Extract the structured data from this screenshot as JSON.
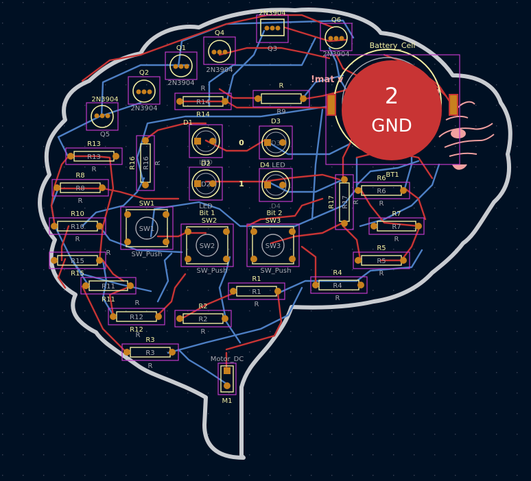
{
  "colors": {
    "background": "#001023",
    "outline": "#c8cbd0",
    "copper_front": "#c83434",
    "copper_back": "#4d7fc4",
    "silkscreen": "#f2eda1",
    "courtyard": "#c238c8",
    "fab": "#a8a8b0",
    "pad": "#c8801e",
    "highlight": "#c83434",
    "logo": "#f0a0a0",
    "grid": "#3c4458"
  },
  "labels": {
    "q1_ref": "Q1",
    "q1_val": "2N3904",
    "q2_ref": "Q2",
    "q2_val": "2N3904",
    "q3_ref": "Q3",
    "q3_val": "2N3904",
    "q4_ref": "Q4",
    "q4_val": "2N3904",
    "q5_ref": "Q5",
    "q5_val": "2N3904",
    "q6_ref": "Q6",
    "q6_val": "2N3904",
    "r1_ref": "R1",
    "r1_fab": "R1",
    "r1_val": "R",
    "r2_ref": "R2",
    "r2_fab": "R2",
    "r2_val": "R",
    "r3_ref": "R3",
    "r3_fab": "R3",
    "r3_val": "R",
    "r4_ref": "R4",
    "r4_fab": "R4",
    "r4_val": "R",
    "r5_ref": "R5",
    "r5_fab": "R5",
    "r5_val": "R",
    "r6_ref": "R6",
    "r6_fab": "R6",
    "r6_val": "R",
    "r7_ref": "R7",
    "r7_fab": "R7",
    "r7_val": "R",
    "r8_ref": "R8",
    "r8_fab": "R8",
    "r8_val": "R",
    "r9_ref": "R9",
    "r9_fab": "R9",
    "r9_val": "R",
    "r10_ref": "R10",
    "r10_fab": "R10",
    "r10_val": "R",
    "r11_ref": "R11",
    "r11_fab": "R11",
    "r11_val": "R",
    "r12_ref": "R12",
    "r12_fab": "R12",
    "r12_val": "R",
    "r13_ref": "R13",
    "r13_fab": "R13",
    "r13_val": "R",
    "r14_ref": "R14",
    "r14_fab": "R14",
    "r14_val": "R",
    "r15_ref": "R15",
    "r15_fab": "R15",
    "r15_val": "R",
    "r16_ref": "R16",
    "r16_fab": "R16",
    "r16_val": "R",
    "r17_ref": "R17",
    "r17_fab": "R17",
    "r17_val": "R",
    "d1_ref": "D1",
    "d1_fab": "D1",
    "d1_val": "LED",
    "d2_ref": "D2",
    "d2_fab": "D2",
    "d2_val": "LED",
    "d3_ref": "D3",
    "d3_fab": "D3",
    "d4_ref": "D4",
    "d4_fab": "D4",
    "d4_val": "LED",
    "sw1_ref": "SW1",
    "sw1_fab": "SW1",
    "sw1_val": "SW_Push",
    "sw2_ref": "SW2",
    "sw2_fab": "SW2",
    "sw2_val": "SW_Push",
    "sw3_ref": "SW3",
    "sw3_fab": "SW3",
    "sw3_val": "SW_Push",
    "bit1": "Bit 1",
    "bit2": "Bit 2",
    "digit0": "0",
    "digit1": "1",
    "bt1_ref": "BT1",
    "battery_val": "Battery_Cell",
    "motor_val": "Motor_DC",
    "m1_ref": "M1",
    "banner_text": "!mat v",
    "highlight_net_number": "2",
    "highlight_net_name": "GND"
  }
}
